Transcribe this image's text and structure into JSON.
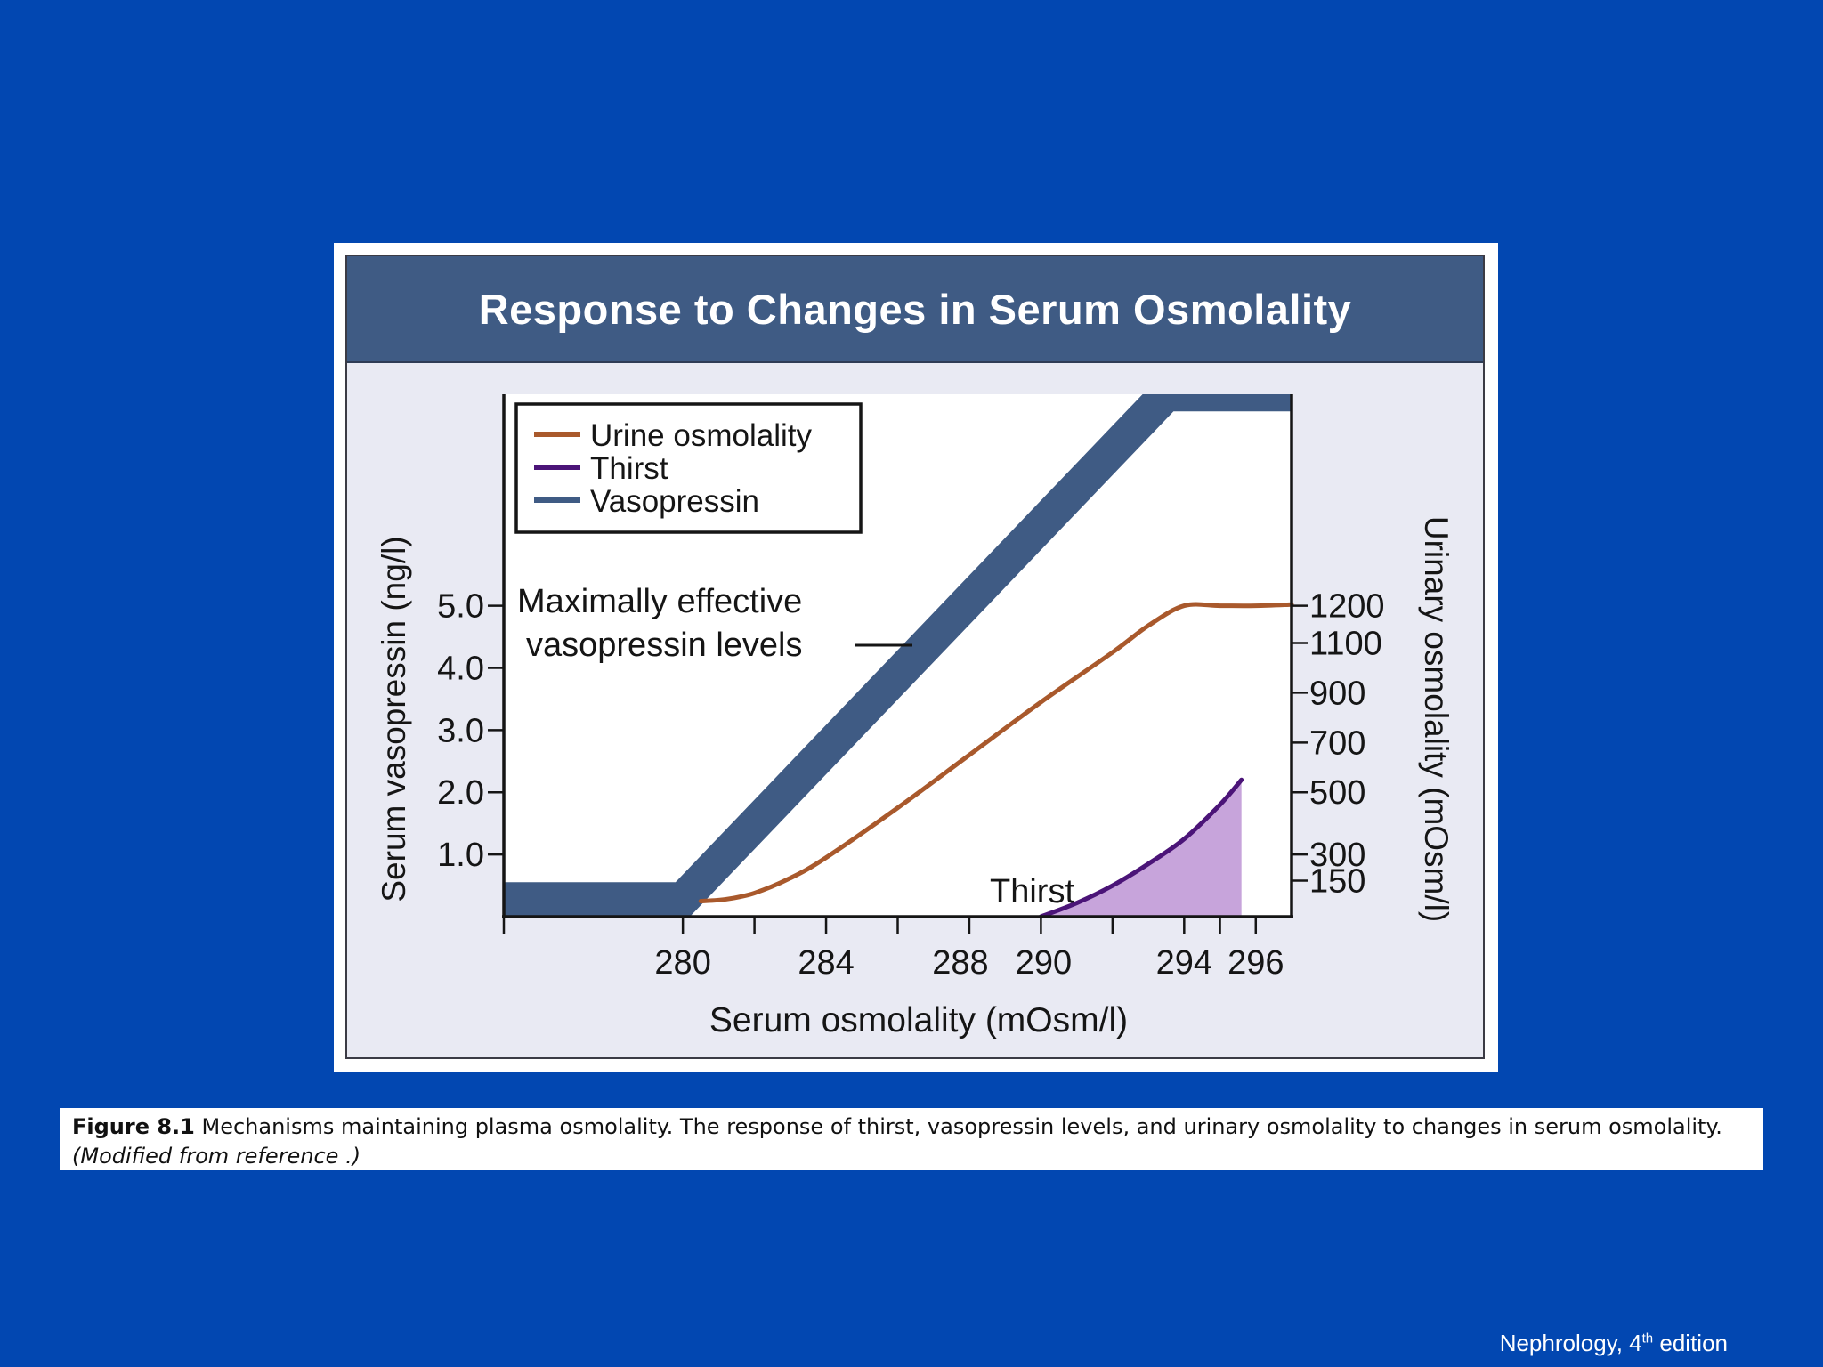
{
  "chart_data": {
    "type": "line",
    "title": "Response to Changes in Serum Osmolality",
    "xlabel": "Serum osmolality (mOsm/l)",
    "ylabel_left": "Serum vasopressin (ng/l)",
    "ylabel_right": "Urinary osmolality (mOsm/l)",
    "x_ticks": [
      280,
      284,
      288,
      290,
      294,
      296
    ],
    "x_minor_ticks": [
      275,
      282,
      286,
      292,
      295
    ],
    "xlim": [
      275,
      297
    ],
    "y_left_ticks": [
      "1.0",
      "2.0",
      "3.0",
      "4.0",
      "5.0"
    ],
    "y_left_tick_values": [
      1,
      2,
      3,
      4,
      5
    ],
    "ylim_left": [
      0,
      8.4
    ],
    "y_right_ticks": [
      "150",
      "300",
      "500",
      "700",
      "900",
      "1100",
      "1200"
    ],
    "legend": {
      "position": "top-left",
      "items": [
        "Urine osmolality",
        "Thirst",
        "Vasopressin"
      ]
    },
    "series": [
      {
        "name": "Vasopressin",
        "band_width_ng": 0.55,
        "x": [
          275,
          280,
          293.5,
          297
        ],
        "values": [
          0.28,
          0.28,
          8.4,
          8.4
        ]
      },
      {
        "name": "Urine osmolality",
        "x": [
          280.5,
          281.2,
          282,
          283,
          284,
          286,
          288,
          290,
          292,
          293,
          294,
          295,
          296,
          297
        ],
        "values": [
          0.25,
          0.28,
          0.38,
          0.62,
          0.95,
          1.75,
          2.6,
          3.45,
          4.25,
          4.68,
          5.0,
          5.0,
          5.0,
          5.02
        ]
      },
      {
        "name": "Thirst",
        "x": [
          290,
          291,
          292,
          293,
          294,
          295,
          295.6
        ],
        "values": [
          0.0,
          0.22,
          0.5,
          0.85,
          1.25,
          1.8,
          2.2
        ]
      }
    ],
    "annotations": [
      {
        "text_line1": "Maximally effective",
        "text_line2": "vasopressin levels"
      },
      {
        "text": "Thirst"
      }
    ],
    "colors": {
      "vasopressin": "#3f5b84",
      "urine": "#a9592c",
      "thirst": "#4b1478",
      "thirst_fill": "#c7a4db"
    }
  },
  "caption": {
    "label": "Figure 8.1",
    "text": " Mechanisms maintaining plasma osmolality. The response of thirst, vasopressin levels, and urinary osmolality to changes in serum osmolality.",
    "note": "(Modified from reference .)"
  },
  "footer": {
    "source": "Nephrology, 4",
    "superscript": "th",
    "edition": " edition"
  }
}
